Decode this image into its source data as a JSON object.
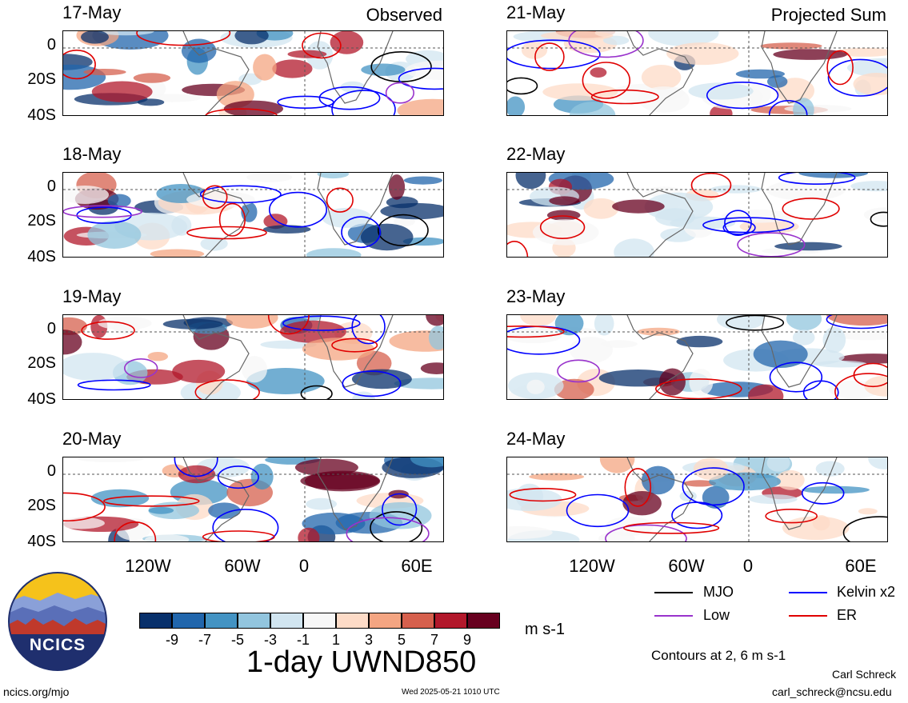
{
  "chart_data": {
    "type": "heatmap",
    "variable": "1-day UWND850",
    "units": "m s-1",
    "columns": [
      {
        "label": "Observed",
        "dates": [
          "17-May",
          "18-May",
          "19-May",
          "20-May"
        ]
      },
      {
        "label": "Projected Sum",
        "dates": [
          "21-May",
          "22-May",
          "23-May",
          "24-May"
        ]
      }
    ],
    "y_ticks": [
      "0",
      "20S",
      "40S"
    ],
    "x_ticks": [
      "120W",
      "60W",
      "0",
      "60E"
    ],
    "colorbar": {
      "ticks": [
        "-9",
        "-7",
        "-5",
        "-3",
        "-1",
        "1",
        "3",
        "5",
        "7",
        "9"
      ],
      "colors": [
        "#08306b",
        "#2166ac",
        "#4393c3",
        "#92c5de",
        "#d1e5f0",
        "#f7f7f7",
        "#fddbc7",
        "#f4a582",
        "#d6604d",
        "#b2182b",
        "#67001f"
      ]
    },
    "legend": [
      {
        "label": "MJO",
        "color": "#000000"
      },
      {
        "label": "Kelvin x2",
        "color": "#0000ff"
      },
      {
        "label": "Low",
        "color": "#9933cc"
      },
      {
        "label": "ER",
        "color": "#e00000"
      }
    ],
    "contours_note": "Contours at 2, 6 m s-1"
  },
  "footer": {
    "site": "ncics.org/mjo",
    "timestamp": "Wed 2025-05-21 1010 UTC",
    "author": "Carl Schreck",
    "email": "carl_schreck@ncsu.edu"
  },
  "logo": {
    "text": "NCICS"
  }
}
